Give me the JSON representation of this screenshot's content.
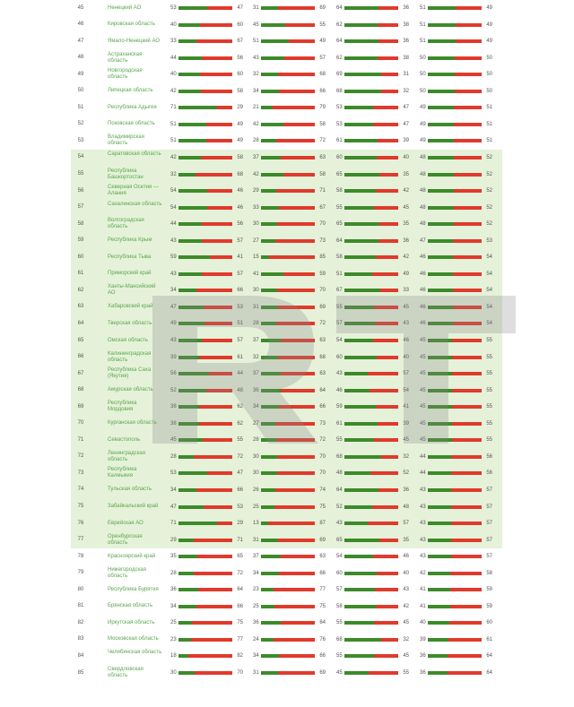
{
  "chart_data": {
    "type": "bar",
    "colors": {
      "positive": "#3d8a2a",
      "negative": "#e03a2c",
      "highlight_band": "#cde6b6",
      "region_text": "#5aa64f"
    },
    "highlighted_ranks": [
      54,
      77
    ],
    "watermark": "RT",
    "rows": [
      {
        "rank": "45",
        "region": "Ненецкий АО",
        "pairs": [
          [
            53,
            47
          ],
          [
            31,
            69
          ],
          [
            64,
            36
          ],
          [
            51,
            49
          ]
        ]
      },
      {
        "rank": "46",
        "region": "Кировская область",
        "pairs": [
          [
            40,
            60
          ],
          [
            45,
            55
          ],
          [
            62,
            38
          ],
          [
            51,
            49
          ]
        ]
      },
      {
        "rank": "47",
        "region": "Ямало-Ненецкий АО",
        "pairs": [
          [
            33,
            67
          ],
          [
            51,
            49
          ],
          [
            64,
            36
          ],
          [
            51,
            49
          ]
        ]
      },
      {
        "rank": "48",
        "region": "Астраханская область",
        "pairs": [
          [
            44,
            56
          ],
          [
            43,
            57
          ],
          [
            62,
            38
          ],
          [
            50,
            50
          ]
        ]
      },
      {
        "rank": "49",
        "region": "Новгородская область",
        "pairs": [
          [
            40,
            60
          ],
          [
            32,
            68
          ],
          [
            69,
            31
          ],
          [
            50,
            50
          ]
        ]
      },
      {
        "rank": "50",
        "region": "Липецкая область",
        "pairs": [
          [
            42,
            58
          ],
          [
            34,
            66
          ],
          [
            68,
            32
          ],
          [
            50,
            50
          ]
        ]
      },
      {
        "rank": "51",
        "region": "Республика Адыгея",
        "pairs": [
          [
            71,
            29
          ],
          [
            21,
            79
          ],
          [
            53,
            47
          ],
          [
            49,
            51
          ]
        ]
      },
      {
        "rank": "52",
        "region": "Псковская область",
        "pairs": [
          [
            51,
            49
          ],
          [
            42,
            58
          ],
          [
            53,
            47
          ],
          [
            49,
            51
          ]
        ]
      },
      {
        "rank": "53",
        "region": "Владимирская область",
        "pairs": [
          [
            51,
            49
          ],
          [
            28,
            72
          ],
          [
            61,
            39
          ],
          [
            49,
            51
          ]
        ]
      },
      {
        "rank": "54",
        "region": "Саратовская область",
        "pairs": [
          [
            42,
            58
          ],
          [
            37,
            63
          ],
          [
            60,
            40
          ],
          [
            48,
            52
          ]
        ]
      },
      {
        "rank": "55",
        "region": "Республика Башкортостан",
        "pairs": [
          [
            32,
            68
          ],
          [
            42,
            58
          ],
          [
            65,
            35
          ],
          [
            48,
            52
          ]
        ]
      },
      {
        "rank": "56",
        "region": "Северная Осетия — Алания",
        "pairs": [
          [
            54,
            46
          ],
          [
            29,
            71
          ],
          [
            58,
            42
          ],
          [
            48,
            52
          ]
        ]
      },
      {
        "rank": "57",
        "region": "Сахалинская область",
        "pairs": [
          [
            54,
            46
          ],
          [
            33,
            67
          ],
          [
            55,
            45
          ],
          [
            48,
            52
          ]
        ]
      },
      {
        "rank": "58",
        "region": "Волгоградская область",
        "pairs": [
          [
            44,
            56
          ],
          [
            30,
            70
          ],
          [
            65,
            35
          ],
          [
            48,
            52
          ]
        ]
      },
      {
        "rank": "59",
        "region": "Республика Крым",
        "pairs": [
          [
            43,
            57
          ],
          [
            27,
            73
          ],
          [
            64,
            36
          ],
          [
            47,
            53
          ]
        ]
      },
      {
        "rank": "60",
        "region": "Республика Тыва",
        "pairs": [
          [
            59,
            41
          ],
          [
            15,
            85
          ],
          [
            58,
            42
          ],
          [
            46,
            54
          ]
        ]
      },
      {
        "rank": "61",
        "region": "Приморский край",
        "pairs": [
          [
            43,
            57
          ],
          [
            41,
            59
          ],
          [
            51,
            49
          ],
          [
            46,
            54
          ]
        ]
      },
      {
        "rank": "62",
        "region": "Ханты-Мансийский АО",
        "pairs": [
          [
            34,
            66
          ],
          [
            30,
            70
          ],
          [
            67,
            33
          ],
          [
            46,
            54
          ]
        ]
      },
      {
        "rank": "63",
        "region": "Хабаровский край",
        "pairs": [
          [
            47,
            53
          ],
          [
            31,
            69
          ],
          [
            55,
            45
          ],
          [
            46,
            54
          ]
        ]
      },
      {
        "rank": "64",
        "region": "Тверская область",
        "pairs": [
          [
            49,
            51
          ],
          [
            28,
            72
          ],
          [
            57,
            43
          ],
          [
            46,
            54
          ]
        ]
      },
      {
        "rank": "65",
        "region": "Омская область",
        "pairs": [
          [
            43,
            57
          ],
          [
            37,
            63
          ],
          [
            54,
            46
          ],
          [
            45,
            55
          ]
        ]
      },
      {
        "rank": "66",
        "region": "Калининградская область",
        "pairs": [
          [
            39,
            61
          ],
          [
            32,
            68
          ],
          [
            60,
            40
          ],
          [
            45,
            55
          ]
        ]
      },
      {
        "rank": "67",
        "region": "Республика Саха (Якутия)",
        "pairs": [
          [
            56,
            44
          ],
          [
            37,
            63
          ],
          [
            43,
            57
          ],
          [
            45,
            55
          ]
        ]
      },
      {
        "rank": "68",
        "region": "Амурская область",
        "pairs": [
          [
            52,
            48
          ],
          [
            36,
            64
          ],
          [
            46,
            54
          ],
          [
            45,
            55
          ]
        ]
      },
      {
        "rank": "69",
        "region": "Республика Мордовия",
        "pairs": [
          [
            38,
            62
          ],
          [
            34,
            66
          ],
          [
            59,
            41
          ],
          [
            45,
            55
          ]
        ]
      },
      {
        "rank": "70",
        "region": "Курганская область",
        "pairs": [
          [
            38,
            62
          ],
          [
            27,
            73
          ],
          [
            61,
            39
          ],
          [
            45,
            55
          ]
        ]
      },
      {
        "rank": "71",
        "region": "Севастополь",
        "pairs": [
          [
            45,
            55
          ],
          [
            28,
            72
          ],
          [
            55,
            45
          ],
          [
            45,
            55
          ]
        ]
      },
      {
        "rank": "72",
        "region": "Ленинградская область",
        "pairs": [
          [
            28,
            72
          ],
          [
            30,
            70
          ],
          [
            68,
            32
          ],
          [
            44,
            56
          ]
        ]
      },
      {
        "rank": "73",
        "region": "Республика Калмыкия",
        "pairs": [
          [
            53,
            47
          ],
          [
            30,
            70
          ],
          [
            48,
            52
          ],
          [
            44,
            56
          ]
        ]
      },
      {
        "rank": "74",
        "region": "Тульская область",
        "pairs": [
          [
            34,
            66
          ],
          [
            26,
            74
          ],
          [
            64,
            36
          ],
          [
            43,
            57
          ]
        ]
      },
      {
        "rank": "75",
        "region": "Забайкальский край",
        "pairs": [
          [
            47,
            53
          ],
          [
            25,
            75
          ],
          [
            52,
            48
          ],
          [
            43,
            57
          ]
        ]
      },
      {
        "rank": "76",
        "region": "Еврейская АО",
        "pairs": [
          [
            71,
            29
          ],
          [
            13,
            87
          ],
          [
            43,
            57
          ],
          [
            43,
            57
          ]
        ]
      },
      {
        "rank": "77",
        "region": "Оренбургская область",
        "pairs": [
          [
            29,
            71
          ],
          [
            31,
            69
          ],
          [
            65,
            35
          ],
          [
            43,
            57
          ]
        ]
      },
      {
        "rank": "78",
        "region": "Красноярский край",
        "pairs": [
          [
            35,
            65
          ],
          [
            37,
            63
          ],
          [
            54,
            46
          ],
          [
            43,
            57
          ]
        ]
      },
      {
        "rank": "79",
        "region": "Нижегородская область",
        "pairs": [
          [
            28,
            72
          ],
          [
            34,
            66
          ],
          [
            60,
            40
          ],
          [
            42,
            58
          ]
        ]
      },
      {
        "rank": "80",
        "region": "Республика Бурятия",
        "pairs": [
          [
            36,
            64
          ],
          [
            23,
            77
          ],
          [
            57,
            43
          ],
          [
            41,
            59
          ]
        ]
      },
      {
        "rank": "81",
        "region": "Брянская область",
        "pairs": [
          [
            34,
            66
          ],
          [
            25,
            75
          ],
          [
            58,
            42
          ],
          [
            41,
            59
          ]
        ]
      },
      {
        "rank": "82",
        "region": "Иркутская область",
        "pairs": [
          [
            25,
            75
          ],
          [
            36,
            64
          ],
          [
            55,
            45
          ],
          [
            40,
            60
          ]
        ]
      },
      {
        "rank": "83",
        "region": "Московская область",
        "pairs": [
          [
            23,
            77
          ],
          [
            24,
            76
          ],
          [
            68,
            32
          ],
          [
            39,
            61
          ]
        ]
      },
      {
        "rank": "84",
        "region": "Челябинская область",
        "pairs": [
          [
            18,
            82
          ],
          [
            34,
            66
          ],
          [
            55,
            45
          ],
          [
            36,
            64
          ]
        ]
      },
      {
        "rank": "85",
        "region": "Свердловская область",
        "pairs": [
          [
            30,
            70
          ],
          [
            31,
            69
          ],
          [
            45,
            55
          ],
          [
            36,
            64
          ]
        ]
      }
    ]
  }
}
